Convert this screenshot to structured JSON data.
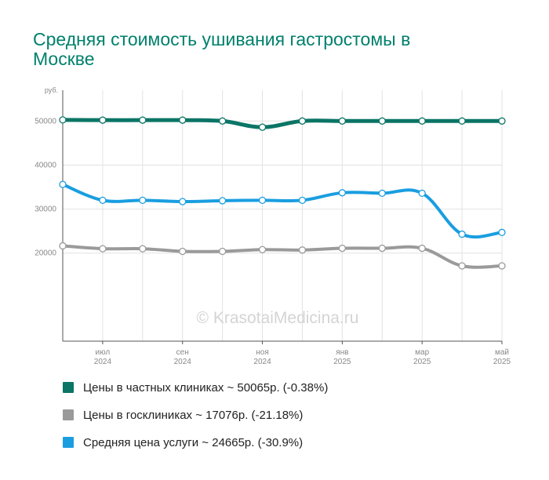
{
  "title": "Средняя стоимость ушивания гастростомы в Москве",
  "watermark": "© KrasotaiMedicina.ru",
  "chart_data": {
    "type": "line",
    "title": "Средняя стоимость ушивания гастростомы в Москве",
    "ylabel": "руб.",
    "ylim": [
      0,
      57000
    ],
    "yticks": [
      20000,
      30000,
      40000,
      50000
    ],
    "grid": true,
    "legend_position": "bottom",
    "x_ticks": [
      {
        "index": 1,
        "month": "июл",
        "year": "2024"
      },
      {
        "index": 3,
        "month": "сен",
        "year": "2024"
      },
      {
        "index": 5,
        "month": "ноя",
        "year": "2024"
      },
      {
        "index": 7,
        "month": "янв",
        "year": "2025"
      },
      {
        "index": 9,
        "month": "мар",
        "year": "2025"
      },
      {
        "index": 11,
        "month": "май",
        "year": "2025"
      }
    ],
    "series": [
      {
        "name": "Цены в частных клиниках ~ 50065р. (-0.38%)",
        "color": "#0b7566",
        "values": [
          50250,
          50200,
          50200,
          50200,
          50000,
          48600,
          50000,
          50000,
          50000,
          50000,
          50000,
          50000
        ]
      },
      {
        "name": "Цены в госклиниках ~ 17076р. (-21.18%)",
        "color": "#9a9a9a",
        "values": [
          21650,
          21000,
          21000,
          20400,
          20400,
          20800,
          20700,
          21100,
          21100,
          21100,
          17100,
          17100
        ]
      },
      {
        "name": "Средняя цена услуги ~ 24665р. (-30.9%)",
        "color": "#1a9ee0",
        "values": [
          35600,
          32000,
          32000,
          31700,
          31900,
          32000,
          32000,
          33700,
          33600,
          33600,
          24300,
          24700
        ]
      }
    ]
  }
}
